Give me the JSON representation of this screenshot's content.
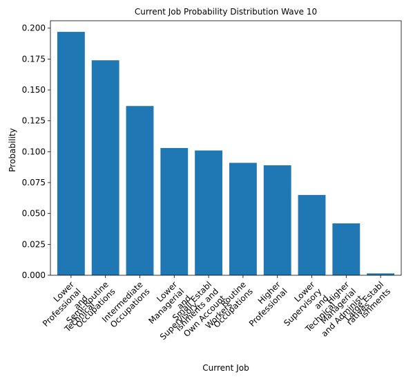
{
  "chart_data": {
    "type": "bar",
    "title": "Current Job Probability Distribution Wave 10",
    "xlabel": "Current Job",
    "ylabel": "Probability",
    "ylim": [
      0,
      0.206
    ],
    "yticks": [
      "0.000",
      "0.025",
      "0.050",
      "0.075",
      "0.100",
      "0.125",
      "0.150",
      "0.175",
      "0.200"
    ],
    "categories": [
      [
        "Lower",
        "Professional",
        "and",
        "Technical"
      ],
      [
        "Semi-Routine",
        "Occupations"
      ],
      [
        "Intermediate",
        "Occupations"
      ],
      [
        "Lower",
        "Managerial",
        "and",
        "Supervisory"
      ],
      [
        "Small Establ",
        "ishments and",
        "Own Account",
        "Workers"
      ],
      [
        "Routine",
        "Occupations"
      ],
      [
        "Higher",
        "Professional"
      ],
      [
        "Lower",
        "Supervisory",
        "and",
        "Technical"
      ],
      [
        "Higher",
        "Managerial",
        "and Administ",
        "ratives"
      ],
      [
        "Large Establ",
        "ishments"
      ]
    ],
    "values": [
      0.197,
      0.174,
      0.137,
      0.103,
      0.101,
      0.091,
      0.089,
      0.065,
      0.042,
      0.0015
    ],
    "bar_color": "#1f77b4",
    "grid": false,
    "legend": "none"
  }
}
